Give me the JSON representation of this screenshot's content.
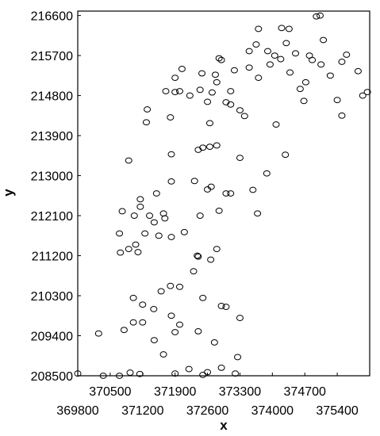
{
  "chart_data": {
    "type": "scatter",
    "title": "",
    "xlabel": "x",
    "ylabel": "y",
    "xlim": [
      369800,
      376100
    ],
    "ylim": [
      208500,
      216700
    ],
    "grid": false,
    "marker": "open-circle",
    "colors": {
      "marker": "#000000",
      "axes": "#000000",
      "background": "#ffffff"
    },
    "x_ticks": [
      369800,
      370500,
      371200,
      371900,
      372600,
      373300,
      374000,
      374700,
      375400
    ],
    "x_tick_labels": [
      "369800",
      "370500",
      "371200",
      "371900",
      "372600",
      "373300",
      "374000",
      "374700",
      "375400"
    ],
    "y_ticks": [
      208500,
      209400,
      210300,
      211200,
      212100,
      213000,
      213900,
      214800,
      215700,
      216600
    ],
    "y_tick_labels": [
      "208500",
      "209400",
      "210300",
      "211200",
      "212100",
      "213000",
      "213900",
      "214800",
      "215700",
      "216600"
    ],
    "points": [
      {
        "x": 369800,
        "y": 208550
      },
      {
        "x": 370250,
        "y": 209450
      },
      {
        "x": 370350,
        "y": 208500
      },
      {
        "x": 370700,
        "y": 208500
      },
      {
        "x": 370930,
        "y": 208570
      },
      {
        "x": 371140,
        "y": 208540
      },
      {
        "x": 371900,
        "y": 208550
      },
      {
        "x": 372200,
        "y": 208650
      },
      {
        "x": 372500,
        "y": 208520
      },
      {
        "x": 372600,
        "y": 208580
      },
      {
        "x": 372900,
        "y": 208680
      },
      {
        "x": 373200,
        "y": 208550
      },
      {
        "x": 371650,
        "y": 208980
      },
      {
        "x": 372750,
        "y": 209250
      },
      {
        "x": 373250,
        "y": 208920
      },
      {
        "x": 370800,
        "y": 209530
      },
      {
        "x": 371000,
        "y": 209700
      },
      {
        "x": 371200,
        "y": 209700
      },
      {
        "x": 371450,
        "y": 209300
      },
      {
        "x": 371900,
        "y": 209480
      },
      {
        "x": 372000,
        "y": 209650
      },
      {
        "x": 372400,
        "y": 209500
      },
      {
        "x": 373300,
        "y": 209800
      },
      {
        "x": 371820,
        "y": 209850
      },
      {
        "x": 371200,
        "y": 210100
      },
      {
        "x": 371440,
        "y": 210000
      },
      {
        "x": 371000,
        "y": 210250
      },
      {
        "x": 371600,
        "y": 210400
      },
      {
        "x": 371800,
        "y": 210520
      },
      {
        "x": 372000,
        "y": 210500
      },
      {
        "x": 372500,
        "y": 210250
      },
      {
        "x": 372900,
        "y": 210070
      },
      {
        "x": 373000,
        "y": 210050
      },
      {
        "x": 370900,
        "y": 211350
      },
      {
        "x": 371100,
        "y": 211280
      },
      {
        "x": 371250,
        "y": 211700
      },
      {
        "x": 371550,
        "y": 211650
      },
      {
        "x": 371820,
        "y": 211620
      },
      {
        "x": 372100,
        "y": 211730
      },
      {
        "x": 372380,
        "y": 211200
      },
      {
        "x": 372400,
        "y": 211180
      },
      {
        "x": 372670,
        "y": 211110
      },
      {
        "x": 372800,
        "y": 211350
      },
      {
        "x": 372300,
        "y": 210850
      },
      {
        "x": 370700,
        "y": 211700
      },
      {
        "x": 370720,
        "y": 211270
      },
      {
        "x": 371050,
        "y": 211450
      },
      {
        "x": 371450,
        "y": 211950
      },
      {
        "x": 371680,
        "y": 212040
      },
      {
        "x": 372440,
        "y": 212100
      },
      {
        "x": 373000,
        "y": 212600
      },
      {
        "x": 370760,
        "y": 212200
      },
      {
        "x": 371020,
        "y": 212100
      },
      {
        "x": 371150,
        "y": 212300
      },
      {
        "x": 371350,
        "y": 212100
      },
      {
        "x": 371650,
        "y": 212150
      },
      {
        "x": 371150,
        "y": 212470
      },
      {
        "x": 371500,
        "y": 212600
      },
      {
        "x": 371820,
        "y": 212870
      },
      {
        "x": 372320,
        "y": 212880
      },
      {
        "x": 372600,
        "y": 212690
      },
      {
        "x": 372680,
        "y": 212750
      },
      {
        "x": 373100,
        "y": 212600
      },
      {
        "x": 373580,
        "y": 212680
      },
      {
        "x": 372850,
        "y": 212210
      },
      {
        "x": 373680,
        "y": 212150
      },
      {
        "x": 370900,
        "y": 213340
      },
      {
        "x": 371820,
        "y": 213480
      },
      {
        "x": 372400,
        "y": 213580
      },
      {
        "x": 372650,
        "y": 213650
      },
      {
        "x": 372800,
        "y": 213680
      },
      {
        "x": 373300,
        "y": 213400
      },
      {
        "x": 373880,
        "y": 213050
      },
      {
        "x": 374280,
        "y": 213470
      },
      {
        "x": 372500,
        "y": 213630
      },
      {
        "x": 372650,
        "y": 214180
      },
      {
        "x": 373000,
        "y": 214650
      },
      {
        "x": 373100,
        "y": 214600
      },
      {
        "x": 373400,
        "y": 214340
      },
      {
        "x": 373300,
        "y": 214470
      },
      {
        "x": 374080,
        "y": 214150
      },
      {
        "x": 371280,
        "y": 214200
      },
      {
        "x": 371300,
        "y": 214490
      },
      {
        "x": 371800,
        "y": 214310
      },
      {
        "x": 371700,
        "y": 214900
      },
      {
        "x": 371900,
        "y": 214880
      },
      {
        "x": 372000,
        "y": 214900
      },
      {
        "x": 372220,
        "y": 214800
      },
      {
        "x": 372440,
        "y": 214930
      },
      {
        "x": 372600,
        "y": 214660
      },
      {
        "x": 372700,
        "y": 214870
      },
      {
        "x": 373100,
        "y": 214900
      },
      {
        "x": 371900,
        "y": 215200
      },
      {
        "x": 372050,
        "y": 215400
      },
      {
        "x": 372480,
        "y": 215300
      },
      {
        "x": 372770,
        "y": 215270
      },
      {
        "x": 372800,
        "y": 215100
      },
      {
        "x": 373180,
        "y": 215370
      },
      {
        "x": 373500,
        "y": 215430
      },
      {
        "x": 373700,
        "y": 215200
      },
      {
        "x": 373950,
        "y": 215500
      },
      {
        "x": 374380,
        "y": 215320
      },
      {
        "x": 374600,
        "y": 214950
      },
      {
        "x": 374680,
        "y": 214680
      },
      {
        "x": 372850,
        "y": 215640
      },
      {
        "x": 372900,
        "y": 215600
      },
      {
        "x": 373500,
        "y": 215800
      },
      {
        "x": 373650,
        "y": 215950
      },
      {
        "x": 374050,
        "y": 215700
      },
      {
        "x": 374180,
        "y": 215620
      },
      {
        "x": 373900,
        "y": 215800
      },
      {
        "x": 374300,
        "y": 215980
      },
      {
        "x": 374500,
        "y": 215750
      },
      {
        "x": 374800,
        "y": 215700
      },
      {
        "x": 374860,
        "y": 215600
      },
      {
        "x": 375050,
        "y": 215500
      },
      {
        "x": 373700,
        "y": 216300
      },
      {
        "x": 374200,
        "y": 216320
      },
      {
        "x": 374360,
        "y": 216300
      },
      {
        "x": 374950,
        "y": 216580
      },
      {
        "x": 375030,
        "y": 216600
      },
      {
        "x": 375100,
        "y": 216050
      },
      {
        "x": 375500,
        "y": 215560
      },
      {
        "x": 375600,
        "y": 215720
      },
      {
        "x": 375250,
        "y": 215250
      },
      {
        "x": 375400,
        "y": 214700
      },
      {
        "x": 375500,
        "y": 214350
      },
      {
        "x": 375850,
        "y": 215350
      },
      {
        "x": 375950,
        "y": 214800
      },
      {
        "x": 376050,
        "y": 214880
      },
      {
        "x": 374720,
        "y": 215100
      }
    ]
  }
}
